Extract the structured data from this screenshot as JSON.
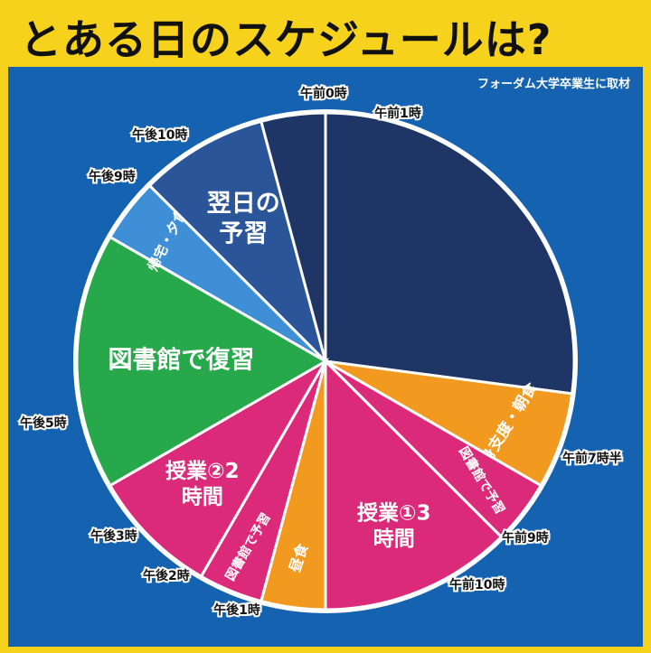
{
  "title": "とある日のスケジュールは?",
  "source_note": "フォーダム大学卒業生に取材",
  "chart_data": {
    "type": "pie",
    "title": "とある日のスケジュールは?",
    "unit": "hours",
    "start_time_label": "午前0時",
    "slices": [
      {
        "label": "",
        "start": "午前1時",
        "end": "午前7時半",
        "hours": 6.5,
        "color": "#1e3566"
      },
      {
        "label": "身支度・朝食",
        "start": "午前7時半",
        "end": "午前9時",
        "hours": 1.5,
        "color": "#f29a1f"
      },
      {
        "label": "図書館で予習",
        "start": "午前9時",
        "end": "午前10時",
        "hours": 1.0,
        "color": "#dc2a7a"
      },
      {
        "label": "授業① 3時間",
        "start": "午前10時",
        "end": "午後1時",
        "hours": 3.0,
        "color": "#dc2a7a"
      },
      {
        "label": "昼食",
        "start": "午後1時",
        "end": "午後2時",
        "hours": 1.0,
        "color": "#f29a1f"
      },
      {
        "label": "図書館で予習",
        "start": "午後2時",
        "end": "午後3時",
        "hours": 1.0,
        "color": "#dc2a7a"
      },
      {
        "label": "授業② 2時間",
        "start": "午後3時",
        "end": "午後5時",
        "hours": 2.0,
        "color": "#dc2a7a"
      },
      {
        "label": "図書館で復習",
        "start": "午後5時",
        "end": "午後9時",
        "hours": 4.0,
        "color": "#27a84a"
      },
      {
        "label": "帰宅・夕食",
        "start": "午後9時",
        "end": "午後10時",
        "hours": 1.0,
        "color": "#3f8fd6"
      },
      {
        "label": "翌日の予習",
        "start": "午後10時",
        "end": "午前0時",
        "hours": 2.0,
        "color": "#2a5598"
      },
      {
        "label": "",
        "start": "午前0時",
        "end": "午前1時",
        "hours": 1.0,
        "color": "#1e3566"
      }
    ],
    "time_labels": [
      "午前0時",
      "午前1時",
      "午前7時半",
      "午前9時",
      "午前10時",
      "午後1時",
      "午後2時",
      "午後3時",
      "午後5時",
      "午後9時",
      "午後10時"
    ]
  }
}
